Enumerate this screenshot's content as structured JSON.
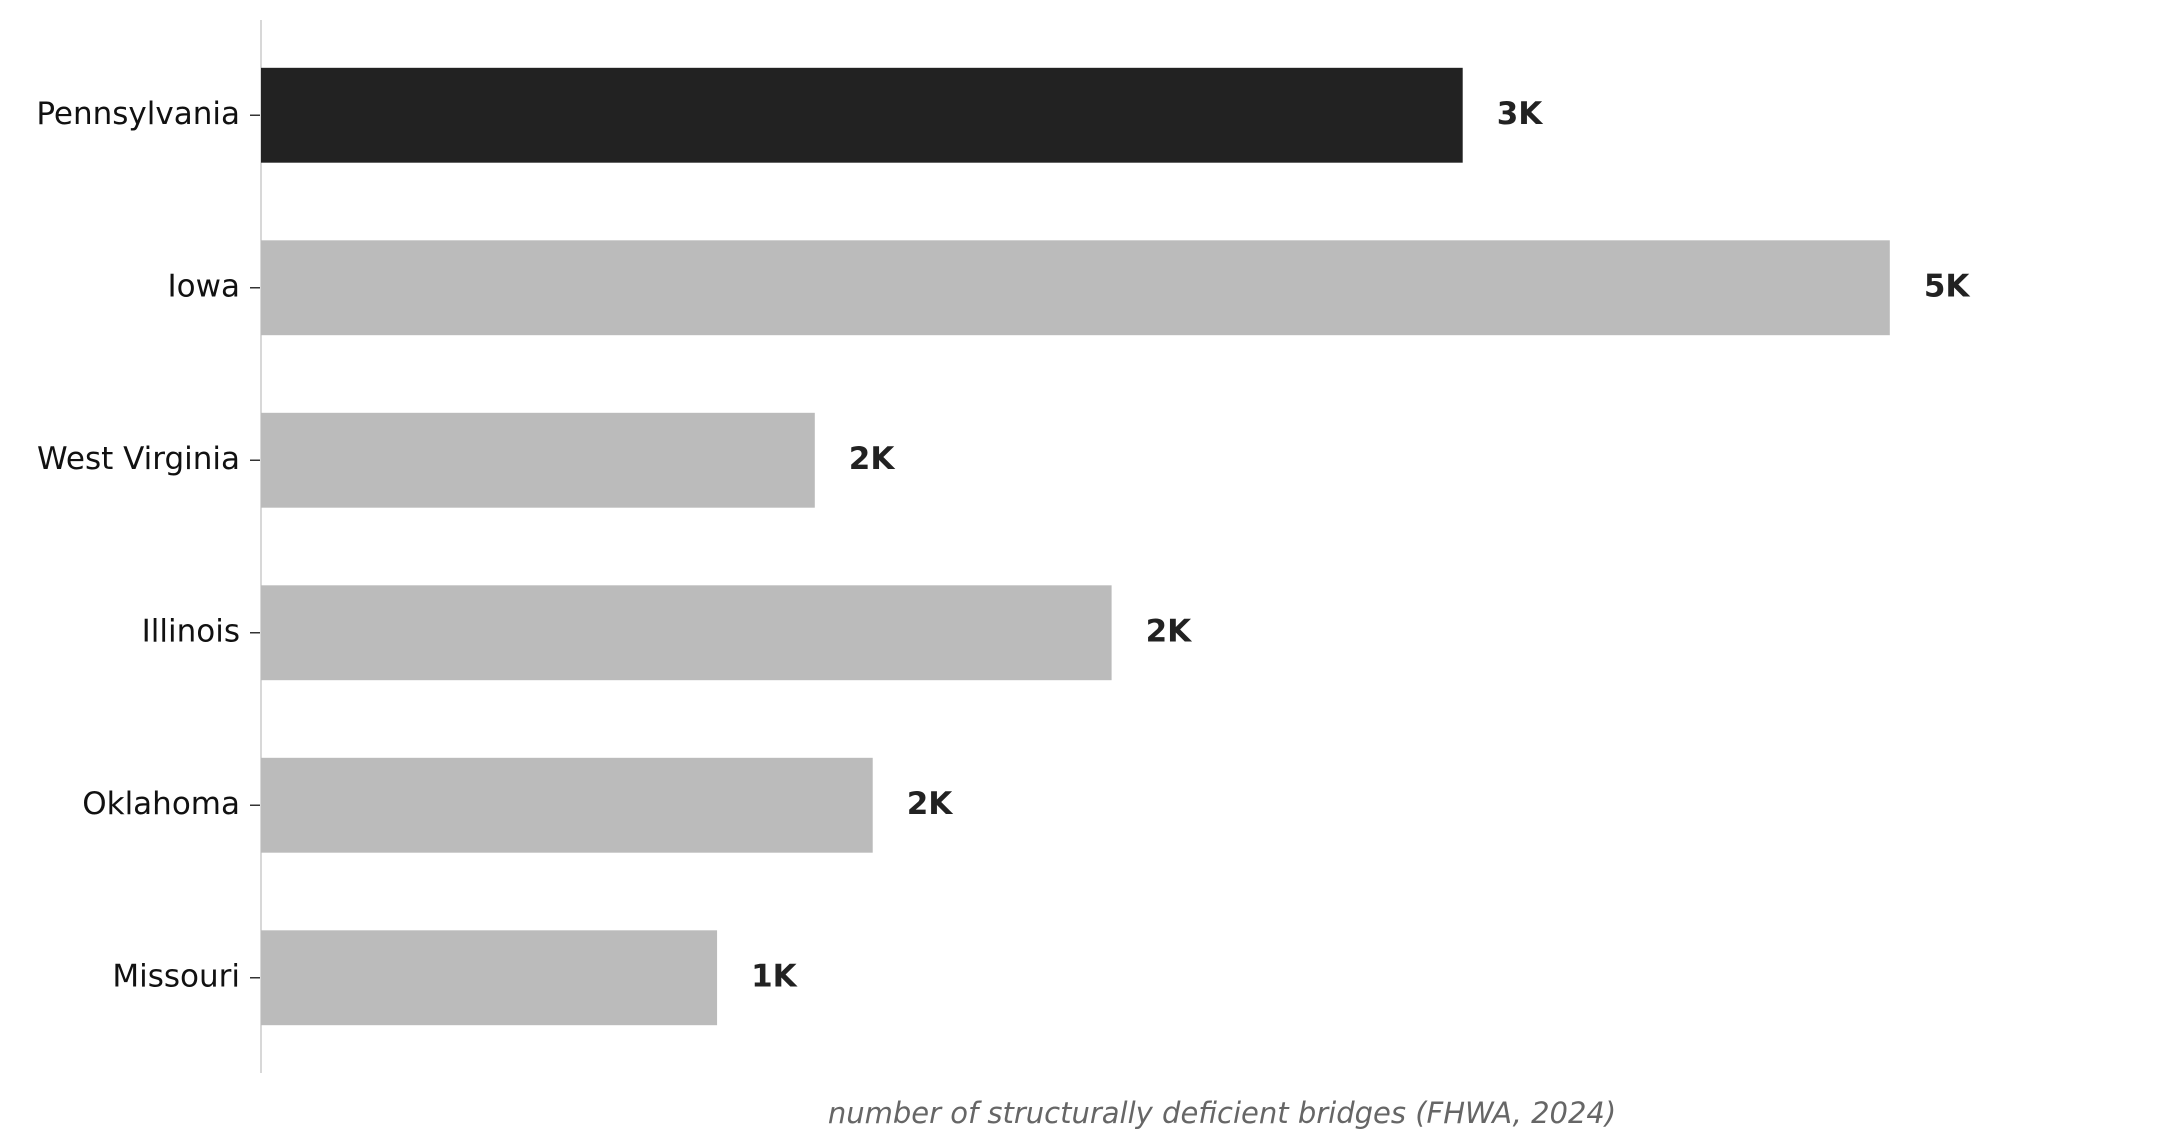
{
  "chart_data": {
    "type": "barh",
    "xlabel": "number of structurally deficient bridges (FHWA, 2024)",
    "categories": [
      "Pennsylvania",
      "Iowa",
      "West Virginia",
      "Illinois",
      "Oklahoma",
      "Missouri"
    ],
    "values": [
      3320,
      4500,
      1530,
      2350,
      1690,
      1260
    ],
    "value_labels": [
      "3K",
      "5K",
      "2K",
      "2K",
      "2K",
      "1K"
    ],
    "colors": [
      "#222222",
      "#bbbbbb",
      "#bbbbbb",
      "#bbbbbb",
      "#bbbbbb",
      "#bbbbbb"
    ],
    "xlim": [
      0,
      5310
    ]
  }
}
